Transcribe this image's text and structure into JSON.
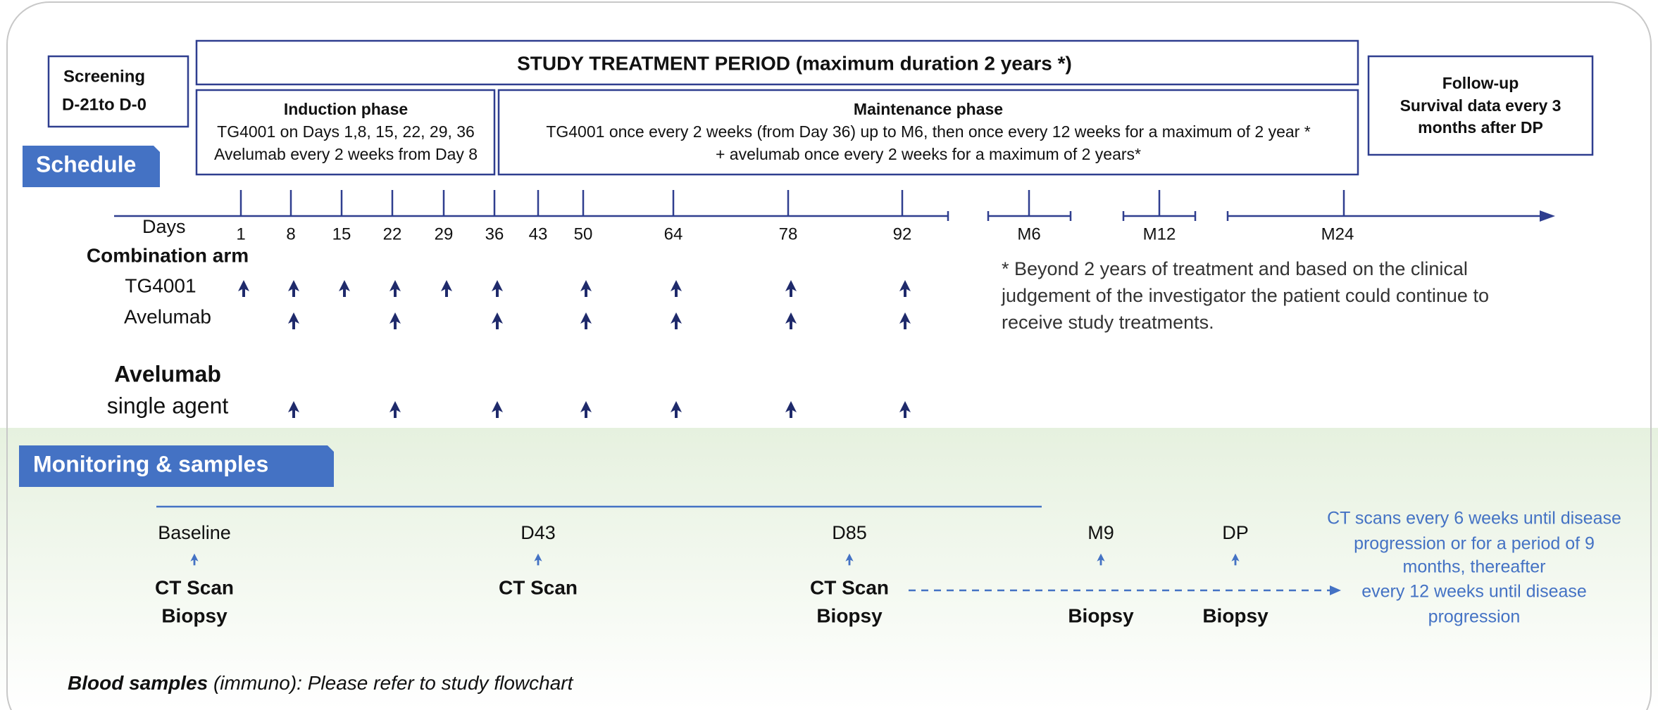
{
  "screening": [
    "Screening",
    "D-21to D-0"
  ],
  "treatment_period": "STUDY TREATMENT PERIOD (maximum duration 2 years *)",
  "induction": {
    "title": "Induction phase",
    "lines": [
      "TG4001 on Days 1,8, 15, 22, 29, 36",
      "Avelumab every 2 weeks from Day 8"
    ]
  },
  "maintenance": {
    "title": "Maintenance phase",
    "lines": [
      "TG4001 once every 2 weeks (from Day 36) up to M6, then once every 12 weeks for a maximum of 2 year *",
      "+ avelumab once every 2 weeks for a maximum of 2 years*"
    ]
  },
  "follow_up": [
    "Follow-up",
    "Survival data every 3",
    "months after DP"
  ],
  "schedule_label": "Schedule",
  "timeline": {
    "days_label": "Days",
    "days": [
      "1",
      "8",
      "15",
      "22",
      "29",
      "36",
      "43",
      "50",
      "64",
      "78",
      "92"
    ],
    "months": [
      "M6",
      "M12",
      "M24"
    ]
  },
  "arms": {
    "combination_label": "Combination arm",
    "rows": [
      "TG4001",
      "Avelumab"
    ],
    "single_agent": [
      "Avelumab",
      "single agent"
    ]
  },
  "footnote": [
    "* Beyond 2 years of treatment and based on the clinical",
    "judgement of the investigator the patient could continue to",
    "receive study treatments."
  ],
  "monitoring": {
    "label": "Monitoring & samples",
    "points": [
      {
        "label": "Baseline",
        "ct_scan": "CT Scan",
        "biopsy": "Biopsy"
      },
      {
        "label": "D43",
        "ct_scan": "CT Scan"
      },
      {
        "label": "D85",
        "ct_scan": "CT Scan",
        "biopsy": "Biopsy"
      },
      {
        "label": "M9",
        "biopsy": "Biopsy"
      },
      {
        "label": "DP",
        "biopsy": "Biopsy"
      }
    ],
    "ct_note": [
      "CT scans every 6 weeks until disease",
      "progression or for a period of 9",
      "months, thereafter",
      "every 12 weeks until disease",
      "progression"
    ]
  },
  "blood": {
    "bold": "Blood samples",
    "rest": " (immuno): Please refer to study flowchart"
  }
}
